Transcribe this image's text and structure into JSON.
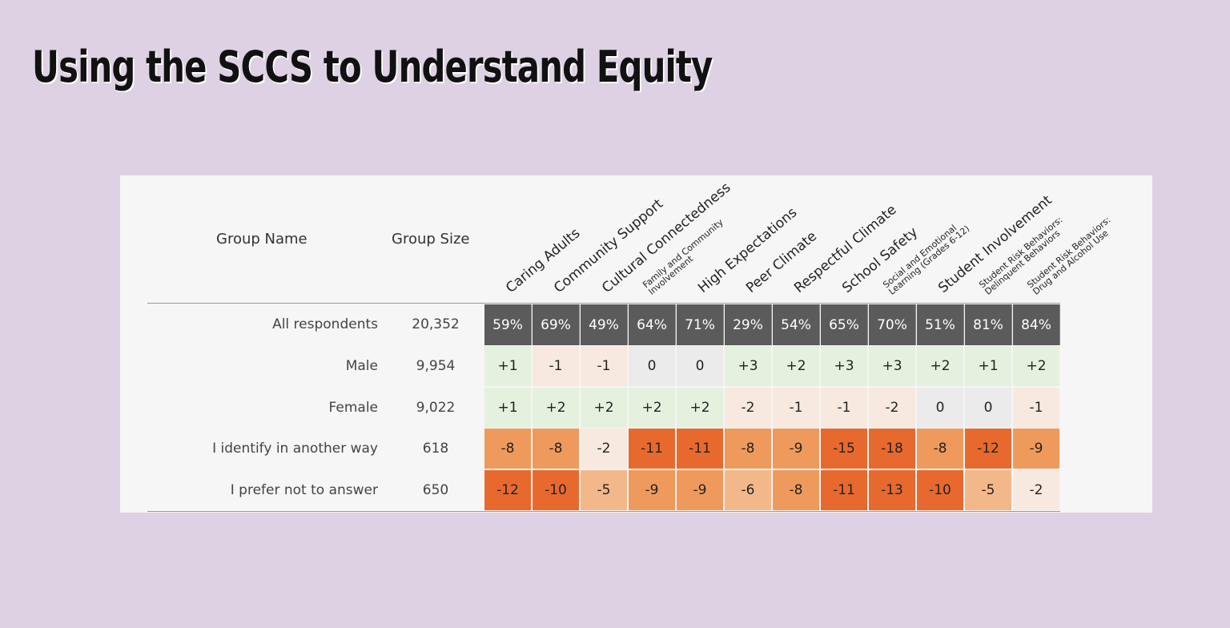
{
  "slide": {
    "title": "Using the SCCS to Understand Equity"
  },
  "chart_data": {
    "type": "table",
    "columns": {
      "group_name": "Group Name",
      "group_size": "Group Size"
    },
    "measures": [
      {
        "lines": [
          "Caring Adults"
        ],
        "size": "big"
      },
      {
        "lines": [
          "Community Support"
        ],
        "size": "big"
      },
      {
        "lines": [
          "Cultural Connectedness"
        ],
        "size": "big"
      },
      {
        "lines": [
          "Family and Community",
          "Involvement"
        ],
        "size": "small"
      },
      {
        "lines": [
          "High Expectations"
        ],
        "size": "big"
      },
      {
        "lines": [
          "Peer Climate"
        ],
        "size": "big"
      },
      {
        "lines": [
          "Respectful Climate"
        ],
        "size": "big"
      },
      {
        "lines": [
          "School Safety"
        ],
        "size": "big"
      },
      {
        "lines": [
          "Social and Emotional",
          "Learning (Grades 6-12)"
        ],
        "size": "small"
      },
      {
        "lines": [
          "Student Involvement"
        ],
        "size": "big"
      },
      {
        "lines": [
          "Student Risk Behaviors:",
          "Delinquent Behaviors"
        ],
        "size": "small"
      },
      {
        "lines": [
          "Student Risk Behaviors:",
          "Drug and Alcohol Use"
        ],
        "size": "small"
      }
    ],
    "overall": {
      "group": "All respondents",
      "size": "20,352",
      "values": [
        "59%",
        "69%",
        "49%",
        "64%",
        "71%",
        "29%",
        "54%",
        "65%",
        "70%",
        "51%",
        "81%",
        "84%"
      ]
    },
    "rows": [
      {
        "group": "Male",
        "size": "9,954",
        "values": [
          1,
          -1,
          -1,
          0,
          0,
          3,
          2,
          3,
          3,
          2,
          1,
          2
        ]
      },
      {
        "group": "Female",
        "size": "9,022",
        "values": [
          1,
          2,
          2,
          2,
          2,
          -2,
          -1,
          -1,
          -2,
          0,
          0,
          -1
        ]
      },
      {
        "group": "I identify in another way",
        "size": "618",
        "values": [
          -8,
          -8,
          -2,
          -11,
          -11,
          -8,
          -9,
          -15,
          -18,
          -8,
          -12,
          -9
        ]
      },
      {
        "group": "I prefer not to answer",
        "size": "650",
        "values": [
          -12,
          -10,
          -5,
          -9,
          -9,
          -6,
          -8,
          -11,
          -13,
          -10,
          -5,
          -2
        ]
      }
    ],
    "colors": {
      "header_bg": "#5b5b5b",
      "positive": "#e5f1df",
      "zero": "#ebebeb",
      "small_negative": "#f8e9e0",
      "mid_negative": "#f3b889",
      "negative": "#ef9a5d",
      "strong_negative": "#e8692e"
    }
  }
}
